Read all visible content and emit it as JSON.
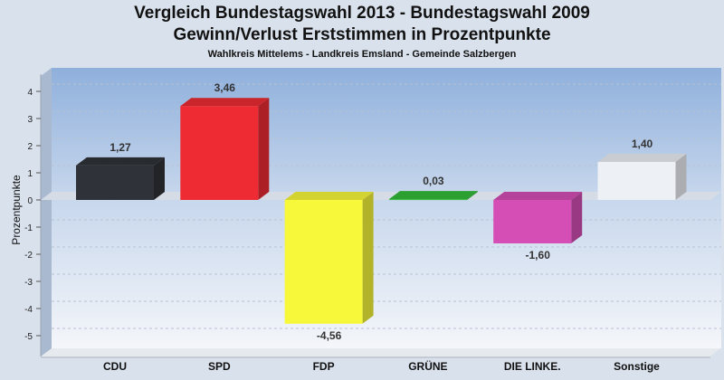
{
  "header": {
    "title": "Vergleich Bundestagswahl 2013 - Bundestagswahl 2009",
    "subtitle": "Gewinn/Verlust Erststimmen in Prozentpunkte",
    "caption": "Wahlkreis Mittelems - Landkreis Emsland - Gemeinde Salzbergen"
  },
  "chart_data": {
    "type": "bar",
    "title": "Vergleich Bundestagswahl 2013 - Bundestagswahl 2009",
    "subtitle": "Gewinn/Verlust Erststimmen in Prozentpunkte",
    "ylabel": "Prozentpunkte",
    "xlabel": "",
    "categories": [
      "CDU",
      "SPD",
      "FDP",
      "GRÜNE",
      "DIE LINKE.",
      "Sonstige"
    ],
    "values": [
      1.27,
      3.46,
      -4.56,
      0.03,
      -1.6,
      1.4
    ],
    "value_labels": [
      "1,27",
      "3,46",
      "-4,56",
      "0,03",
      "-1,60",
      "1,40"
    ],
    "bar_colors": [
      "#2f3238",
      "#ee2b33",
      "#f8f83a",
      "#34bb3a",
      "#d54eb6",
      "#edf0f5"
    ],
    "ylim": [
      -5.3,
      4.6
    ],
    "yticks": [
      4,
      3,
      2,
      1,
      0,
      -1,
      -2,
      -3,
      -4,
      -5
    ],
    "ytick_labels": [
      "4",
      "3",
      "2",
      "1",
      "0",
      "-1",
      "-2",
      "-3",
      "-4",
      "-5"
    ],
    "grid": true,
    "legend": "none"
  }
}
